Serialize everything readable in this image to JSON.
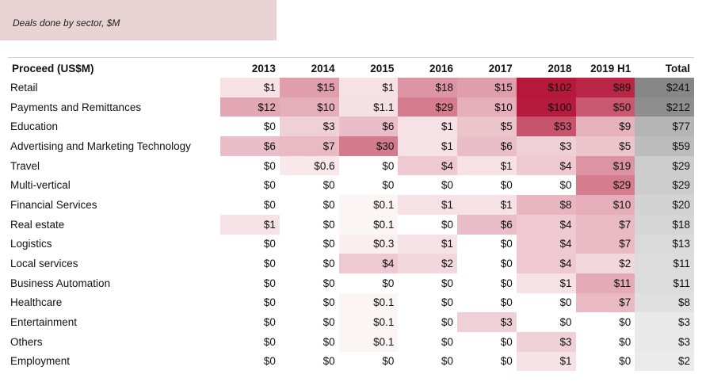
{
  "caption": "Deals done by sector, $M",
  "chart_data": {
    "type": "table",
    "row_header": "Proceed (US$M)",
    "columns": [
      "2013",
      "2014",
      "2015",
      "2016",
      "2017",
      "2018",
      "2019 H1",
      "Total"
    ],
    "rows": [
      {
        "sector": "Retail",
        "cells": [
          "$1",
          "$15",
          "$1",
          "$18",
          "$15",
          "$102",
          "$89",
          "$241"
        ],
        "values": [
          1,
          15,
          1,
          18,
          15,
          102,
          89,
          241
        ]
      },
      {
        "sector": "Payments and Remittances",
        "cells": [
          "$12",
          "$10",
          "$1.1",
          "$29",
          "$10",
          "$100",
          "$50",
          "$212"
        ],
        "values": [
          12,
          10,
          1.1,
          29,
          10,
          100,
          50,
          212
        ]
      },
      {
        "sector": "Education",
        "cells": [
          "$0",
          "$3",
          "$6",
          "$1",
          "$5",
          "$53",
          "$9",
          "$77"
        ],
        "values": [
          0,
          3,
          6,
          1,
          5,
          53,
          9,
          77
        ]
      },
      {
        "sector": "Advertising and Marketing Technology",
        "cells": [
          "$6",
          "$7",
          "$30",
          "$1",
          "$6",
          "$3",
          "$5",
          "$59"
        ],
        "values": [
          6,
          7,
          30,
          1,
          6,
          3,
          5,
          59
        ]
      },
      {
        "sector": "Travel",
        "cells": [
          "$0",
          "$0.6",
          "$0",
          "$4",
          "$1",
          "$4",
          "$19",
          "$29"
        ],
        "values": [
          0,
          0.6,
          0,
          4,
          1,
          4,
          19,
          29
        ]
      },
      {
        "sector": "Multi-vertical",
        "cells": [
          "$0",
          "$0",
          "$0",
          "$0",
          "$0",
          "$0",
          "$29",
          "$29"
        ],
        "values": [
          0,
          0,
          0,
          0,
          0,
          0,
          29,
          29
        ]
      },
      {
        "sector": "Financial Services",
        "cells": [
          "$0",
          "$0",
          "$0.1",
          "$1",
          "$1",
          "$8",
          "$10",
          "$20"
        ],
        "values": [
          0,
          0,
          0.1,
          1,
          1,
          8,
          10,
          20
        ]
      },
      {
        "sector": "Real estate",
        "cells": [
          "$1",
          "$0",
          "$0.1",
          "$0",
          "$6",
          "$4",
          "$7",
          "$18"
        ],
        "values": [
          1,
          0,
          0.1,
          0,
          6,
          4,
          7,
          18
        ]
      },
      {
        "sector": "Logistics",
        "cells": [
          "$0",
          "$0",
          "$0.3",
          "$1",
          "$0",
          "$4",
          "$7",
          "$13"
        ],
        "values": [
          0,
          0,
          0.3,
          1,
          0,
          4,
          7,
          13
        ]
      },
      {
        "sector": "Local services",
        "cells": [
          "$0",
          "$0",
          "$4",
          "$2",
          "$0",
          "$4",
          "$2",
          "$11"
        ],
        "values": [
          0,
          0,
          4,
          2,
          0,
          4,
          2,
          11
        ]
      },
      {
        "sector": "Business Automation",
        "cells": [
          "$0",
          "$0",
          "$0",
          "$0",
          "$0",
          "$1",
          "$11",
          "$11"
        ],
        "values": [
          0,
          0,
          0,
          0,
          0,
          1,
          11,
          11
        ]
      },
      {
        "sector": "Healthcare",
        "cells": [
          "$0",
          "$0",
          "$0.1",
          "$0",
          "$0",
          "$0",
          "$7",
          "$8"
        ],
        "values": [
          0,
          0,
          0.1,
          0,
          0,
          0,
          7,
          8
        ]
      },
      {
        "sector": "Entertainment",
        "cells": [
          "$0",
          "$0",
          "$0.1",
          "$0",
          "$3",
          "$0",
          "$0",
          "$3"
        ],
        "values": [
          0,
          0,
          0.1,
          0,
          3,
          0,
          0,
          3
        ]
      },
      {
        "sector": "Others",
        "cells": [
          "$0",
          "$0",
          "$0.1",
          "$0",
          "$0",
          "$3",
          "$0",
          "$3"
        ],
        "values": [
          0,
          0,
          0.1,
          0,
          0,
          3,
          0,
          3
        ]
      },
      {
        "sector": "Employment",
        "cells": [
          "$0",
          "$0",
          "$0",
          "$0",
          "$0",
          "$1",
          "$0",
          "$2"
        ],
        "values": [
          0,
          0,
          0,
          0,
          0,
          1,
          0,
          2
        ]
      }
    ],
    "colors": {
      "heat_low": "#ffffff",
      "heat_high": "#b5183a",
      "total_low": "#ffffff",
      "total_high": "#7a7a7a",
      "caption_bg": "#e8d2d4"
    }
  }
}
